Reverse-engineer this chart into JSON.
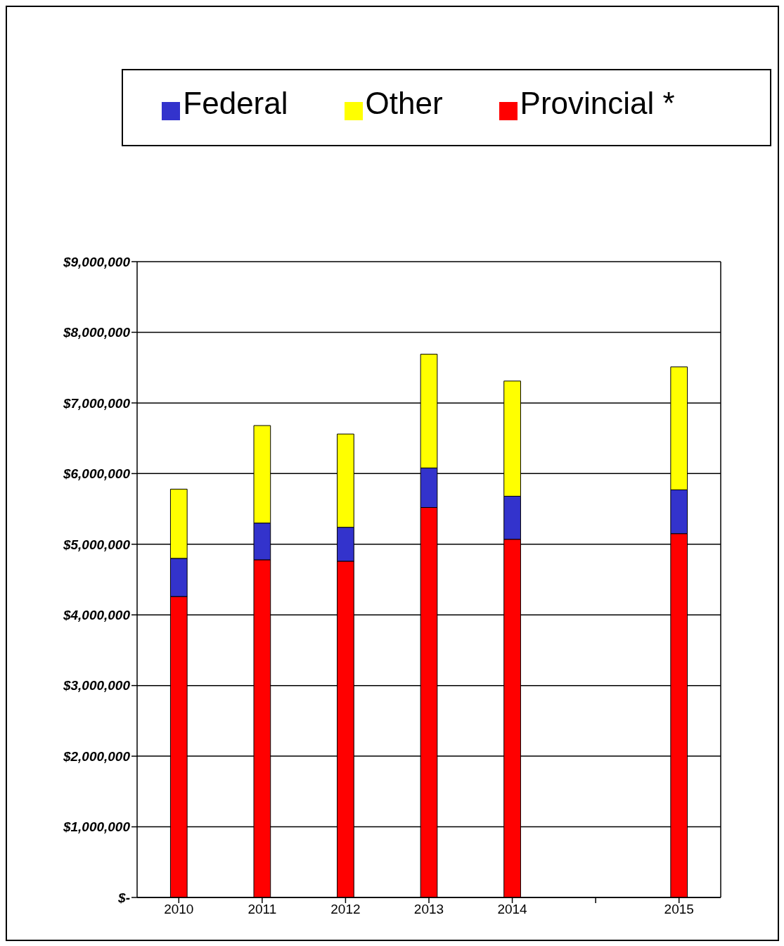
{
  "chart_data": {
    "type": "bar",
    "stacked": true,
    "categories": [
      "2010",
      "2011",
      "2012",
      "2013",
      "2014",
      null,
      "2015"
    ],
    "series": [
      {
        "name": "Provincial *",
        "color": "#ff0000",
        "values": [
          4260000,
          4780000,
          4760000,
          5520000,
          5070000,
          null,
          5150000
        ]
      },
      {
        "name": "Federal",
        "color": "#3333cc",
        "values": [
          540000,
          520000,
          480000,
          560000,
          610000,
          null,
          620000
        ]
      },
      {
        "name": "Other",
        "color": "#ffff00",
        "values": [
          980000,
          1380000,
          1320000,
          1610000,
          1630000,
          null,
          1740000
        ]
      }
    ],
    "ylim": [
      0,
      9000000
    ],
    "yticks": [
      {
        "value": 0,
        "label": "$-"
      },
      {
        "value": 1000000,
        "label": "$1,000,000"
      },
      {
        "value": 2000000,
        "label": "$2,000,000"
      },
      {
        "value": 3000000,
        "label": "$3,000,000"
      },
      {
        "value": 4000000,
        "label": "$4,000,000"
      },
      {
        "value": 5000000,
        "label": "$5,000,000"
      },
      {
        "value": 6000000,
        "label": "$6,000,000"
      },
      {
        "value": 7000000,
        "label": "$7,000,000"
      },
      {
        "value": 8000000,
        "label": "$8,000,000"
      },
      {
        "value": 9000000,
        "label": "$9,000,000"
      }
    ],
    "grid": "y",
    "legend": "top"
  }
}
